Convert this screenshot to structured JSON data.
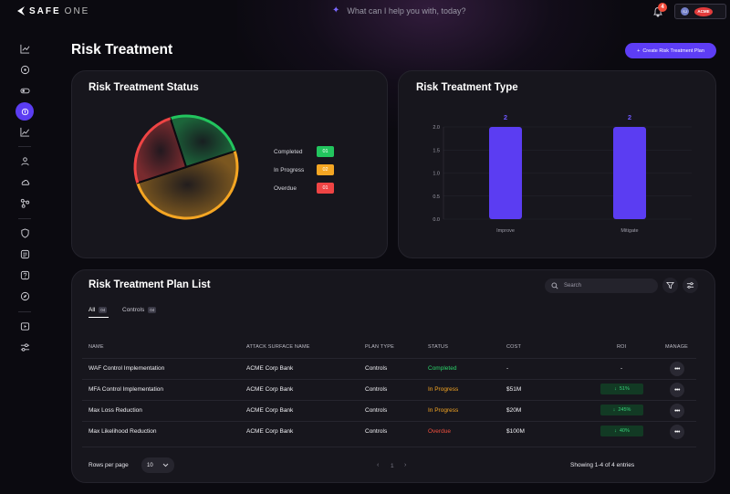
{
  "app": {
    "brand_primary": "SAFE",
    "brand_secondary": "ONE",
    "assistant_prompt": "What can I help you with, today?",
    "notification_count": "4",
    "user_initials": "SJ",
    "org_logo_text": "ACME",
    "accent": "#5d3df5"
  },
  "sidebar": {
    "icons": [
      "chart-icon",
      "target-icon",
      "toggle-icon",
      "risk-icon",
      "trend-icon",
      "user-icon",
      "cloud-icon",
      "nodes-icon",
      "shield-icon",
      "list-icon",
      "question-icon",
      "compass-icon",
      "video-icon",
      "sliders-icon"
    ],
    "active": "risk-icon"
  },
  "page": {
    "title": "Risk Treatment",
    "create_button": "Create Risk Treatment Plan"
  },
  "status_card": {
    "title": "Risk Treatment Status",
    "legend": [
      {
        "label": "Completed",
        "value": "01",
        "color": "#22c55e"
      },
      {
        "label": "In Progress",
        "value": "02",
        "color": "#f5a623"
      },
      {
        "label": "Overdue",
        "value": "01",
        "color": "#ef4444"
      }
    ]
  },
  "type_card": {
    "title": "Risk Treatment Type"
  },
  "chart_data": [
    {
      "type": "pie",
      "title": "Risk Treatment Status",
      "categories": [
        "Completed",
        "In Progress",
        "Overdue"
      ],
      "values": [
        1,
        2,
        1
      ],
      "colors": [
        "#22c55e",
        "#f5a623",
        "#ef4444"
      ]
    },
    {
      "type": "bar",
      "title": "Risk Treatment Type",
      "categories": [
        "Improve",
        "Mitigate"
      ],
      "values": [
        2,
        2
      ],
      "data_labels": [
        "2",
        "2"
      ],
      "yticks": [
        "0.0",
        "0.5",
        "1.0",
        "1.5",
        "2.0"
      ],
      "ylim": [
        0,
        2
      ],
      "color": "#5b3df2",
      "grid": true
    }
  ],
  "list_card": {
    "title": "Risk Treatment Plan List",
    "search_placeholder": "Search",
    "tabs": [
      {
        "label": "All",
        "count": "04"
      },
      {
        "label": "Controls",
        "count": "04"
      }
    ],
    "columns": {
      "name": "NAME",
      "surface": "ATTACK SURFACE NAME",
      "plan_type": "PLAN TYPE",
      "status": "STATUS",
      "cost": "COST",
      "roi": "ROI",
      "manage": "MANAGE"
    },
    "rows": [
      {
        "name": "WAF Control Implementation",
        "surface": "ACME Corp Bank",
        "plan_type": "Controls",
        "status": "Completed",
        "cost": "-",
        "roi": "-"
      },
      {
        "name": "MFA Control Implementation",
        "surface": "ACME Corp Bank",
        "plan_type": "Controls",
        "status": "In Progress",
        "cost": "$51M",
        "roi": "51%"
      },
      {
        "name": "Max Loss Reduction",
        "surface": "ACME Corp Bank",
        "plan_type": "Controls",
        "status": "In Progress",
        "cost": "$20M",
        "roi": "245%"
      },
      {
        "name": "Max Likelihood Reduction",
        "surface": "ACME Corp Bank",
        "plan_type": "Controls",
        "status": "Overdue",
        "cost": "$100M",
        "roi": "40%"
      }
    ],
    "manage_label": "•••",
    "rows_per_page_label": "Rows per page",
    "rows_per_page_value": "10",
    "current_page": "1",
    "showing": "Showing 1-4 of 4 entries"
  }
}
